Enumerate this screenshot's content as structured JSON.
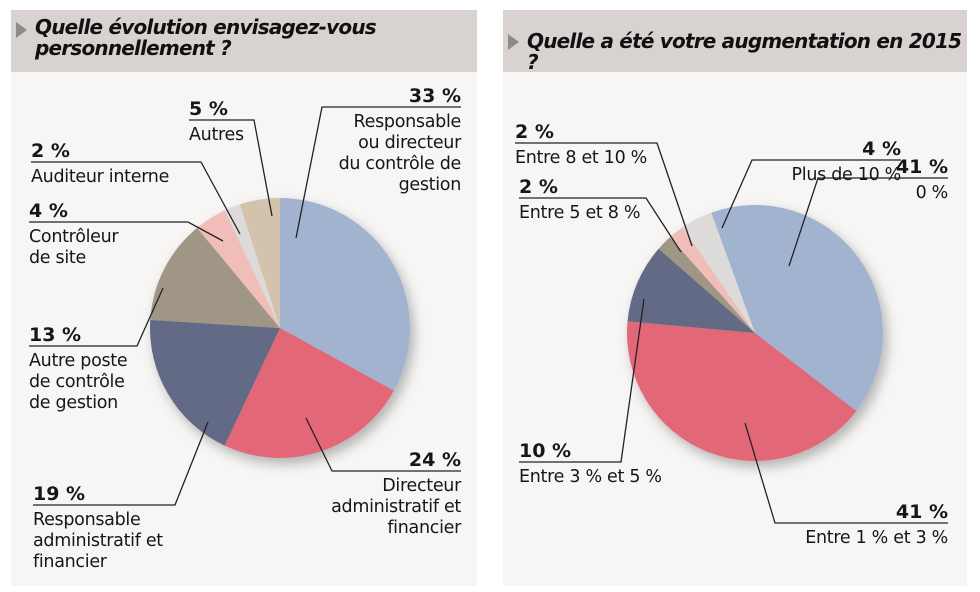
{
  "chart_data": [
    {
      "type": "pie",
      "title": "Quelle évolution envisagez-vous personnellement ?",
      "title_lines": [
        "Quelle évolution envisagez-vous",
        "personnellement ?"
      ],
      "start_angle_deg": 0,
      "direction": "clockwise",
      "slices": [
        {
          "label": "Responsable ou directeur du contrôle de gestion",
          "label_lines": [
            "Responsable",
            "ou directeur",
            "du contrôle de",
            "gestion"
          ],
          "value": 33,
          "display": "33 %",
          "color": "#a2b3cf"
        },
        {
          "label": "Directeur administratif et financier",
          "label_lines": [
            "Directeur",
            "administratif et",
            "financier"
          ],
          "value": 24,
          "display": "24 %",
          "color": "#e26878"
        },
        {
          "label": "Responsable administratif et financier",
          "label_lines": [
            "Responsable",
            "administratif et",
            "financier"
          ],
          "value": 19,
          "display": "19 %",
          "color": "#646a85"
        },
        {
          "label": "Autre poste de contrôle de gestion",
          "label_lines": [
            "Autre poste",
            "de contrôle",
            "de gestion"
          ],
          "value": 13,
          "display": "13 %",
          "color": "#9f9686"
        },
        {
          "label": "Contrôleur de site",
          "label_lines": [
            "Contrôleur",
            "de site"
          ],
          "value": 4,
          "display": "4 %",
          "color": "#f1bdb9"
        },
        {
          "label": "Auditeur interne",
          "label_lines": [
            "Auditeur interne"
          ],
          "value": 2,
          "display": "2 %",
          "color": "#dcdbd9"
        },
        {
          "label": "Autres",
          "label_lines": [
            "Autres"
          ],
          "value": 5,
          "display": "5 %",
          "color": "#d3c3ad"
        }
      ]
    },
    {
      "type": "pie",
      "title": "Quelle a été votre augmentation en 2015 ?",
      "title_lines": [
        "Quelle a été votre augmentation en 2015 ?"
      ],
      "start_angle_deg": -20,
      "direction": "clockwise",
      "slices": [
        {
          "label": "0 %",
          "label_lines": [
            "0 %"
          ],
          "value": 41,
          "display": "41 %",
          "color": "#a2b3cf"
        },
        {
          "label": "Entre 1 % et 3 %",
          "label_lines": [
            "Entre 1 % et 3 %"
          ],
          "value": 41,
          "display": "41 %",
          "color": "#e26878"
        },
        {
          "label": "Entre 3 % et 5 %",
          "label_lines": [
            "Entre 3 % et 5 %"
          ],
          "value": 10,
          "display": "10 %",
          "color": "#646a85"
        },
        {
          "label": "Entre 5 et 8 %",
          "label_lines": [
            "Entre 5 et 8 %"
          ],
          "value": 2,
          "display": "2 %",
          "color": "#9f9686"
        },
        {
          "label": "Entre 8 et 10 %",
          "label_lines": [
            "Entre 8 et 10 %"
          ],
          "value": 2,
          "display": "2 %",
          "color": "#f1bdb9"
        },
        {
          "label": "Plus de 10 %",
          "label_lines": [
            "Plus de 10 %"
          ],
          "value": 4,
          "display": "4 %",
          "color": "#dcdbd9"
        }
      ]
    }
  ],
  "icons": {
    "header_marker": "triangle-right-icon"
  }
}
